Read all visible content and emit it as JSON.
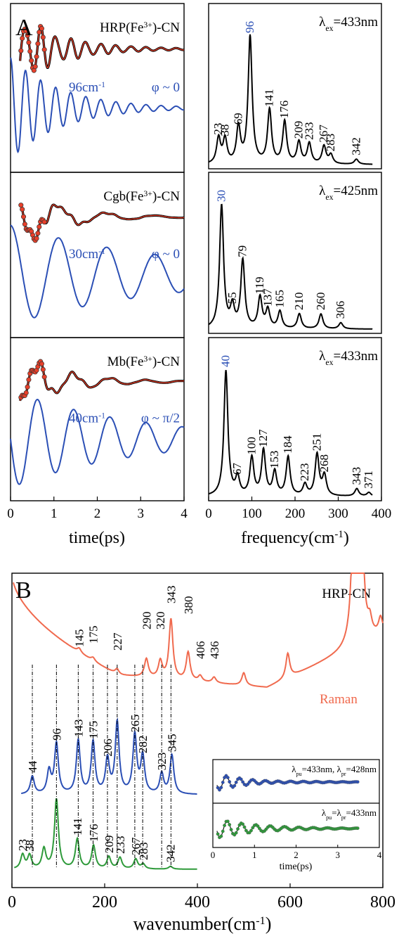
{
  "panel_labels": {
    "a": "A",
    "b": "B"
  },
  "colors": {
    "black": "#000000",
    "blue": "#2b4fb5",
    "red": "#e8402a",
    "orange": "#f06a4e",
    "green": "#2e9a3a",
    "dash": "#000000"
  },
  "chart_data": [
    {
      "type": "line",
      "panel": "A-time",
      "xlabel": "time(ps)",
      "xlim": [
        0,
        4
      ],
      "xticks": [
        "0",
        "1",
        "2",
        "3",
        "4"
      ],
      "rows": [
        {
          "sample": "HRP(Fe³⁺)-CN",
          "sample_text": "HRP(Fe",
          "sample_sup": "3+",
          "sample_tail": ")-CN",
          "freq_label": "96cm",
          "freq_sup": "-1",
          "phase_label": "φ ~ 0",
          "freq_cm": 96,
          "phase": "0"
        },
        {
          "sample": "Cgb(Fe³⁺)-CN",
          "sample_text": "Cgb(Fe",
          "sample_sup": "3+",
          "sample_tail": ")-CN",
          "freq_label": "30cm",
          "freq_sup": "-1",
          "phase_label": "φ ~ 0",
          "freq_cm": 30,
          "phase": "0"
        },
        {
          "sample": "Mb(Fe³⁺)-CN",
          "sample_text": "Mb(Fe",
          "sample_sup": "3+",
          "sample_tail": ")-CN",
          "freq_label": "40cm",
          "freq_sup": "-1",
          "phase_label": "φ ~ π/2",
          "freq_cm": 40,
          "phase": "pi/2"
        }
      ]
    },
    {
      "type": "line",
      "panel": "A-frequency",
      "xlabel": "frequency(cm",
      "xlabel_sup": "-1",
      "xlabel_tail": ")",
      "xlim": [
        0,
        400
      ],
      "xticks": [
        "0",
        "100",
        "200",
        "300",
        "400"
      ],
      "rows": [
        {
          "excitation": "λ",
          "excitation_sub": "ex",
          "excitation_value": "=433nm",
          "dominant": "96",
          "peaks": [
            {
              "x": 23,
              "h": 0.2
            },
            {
              "x": 38,
              "h": 0.19
            },
            {
              "x": 69,
              "h": 0.28
            },
            {
              "x": 96,
              "h": 1.0
            },
            {
              "x": 141,
              "h": 0.42
            },
            {
              "x": 176,
              "h": 0.33
            },
            {
              "x": 209,
              "h": 0.17
            },
            {
              "x": 233,
              "h": 0.16
            },
            {
              "x": 267,
              "h": 0.14
            },
            {
              "x": 283,
              "h": 0.07
            },
            {
              "x": 342,
              "h": 0.04
            }
          ]
        },
        {
          "excitation": "λ",
          "excitation_sub": "ex",
          "excitation_value": "=425nm",
          "dominant": "30",
          "peaks": [
            {
              "x": 30,
              "h": 1.0
            },
            {
              "x": 55,
              "h": 0.17
            },
            {
              "x": 79,
              "h": 0.55
            },
            {
              "x": 119,
              "h": 0.25
            },
            {
              "x": 137,
              "h": 0.15
            },
            {
              "x": 165,
              "h": 0.14
            },
            {
              "x": 210,
              "h": 0.12
            },
            {
              "x": 260,
              "h": 0.12
            },
            {
              "x": 306,
              "h": 0.05
            }
          ]
        },
        {
          "excitation": "λ",
          "excitation_sub": "ex",
          "excitation_value": "=433nm",
          "dominant": "40",
          "peaks": [
            {
              "x": 40,
              "h": 1.0
            },
            {
              "x": 67,
              "h": 0.14
            },
            {
              "x": 100,
              "h": 0.3
            },
            {
              "x": 127,
              "h": 0.36
            },
            {
              "x": 153,
              "h": 0.19
            },
            {
              "x": 184,
              "h": 0.31
            },
            {
              "x": 223,
              "h": 0.09
            },
            {
              "x": 251,
              "h": 0.33
            },
            {
              "x": 268,
              "h": 0.16
            },
            {
              "x": 343,
              "h": 0.06
            },
            {
              "x": 371,
              "h": 0.03
            }
          ]
        }
      ]
    },
    {
      "type": "line",
      "panel": "B",
      "title": "HRP-CN",
      "xlabel": "wavenumber(cm",
      "xlabel_sup": "-1",
      "xlabel_tail": ")",
      "xlim": [
        0,
        800
      ],
      "xticks": [
        "0",
        "200",
        "400",
        "600",
        "800"
      ],
      "series": [
        {
          "name": "Raman",
          "color": "orange",
          "labels": [
            "145",
            "175",
            "227",
            "290",
            "320",
            "343",
            "380",
            "406",
            "436"
          ],
          "label_x": [
            145,
            175,
            227,
            290,
            320,
            343,
            380,
            406,
            436
          ]
        },
        {
          "color": "blue",
          "labels": [
            "44",
            "96",
            "143",
            "175",
            "206",
            "265",
            "282",
            "323",
            "345"
          ],
          "label_x": [
            44,
            96,
            143,
            175,
            206,
            265,
            282,
            323,
            345
          ],
          "peaks": [
            {
              "x": 44,
              "h": 0.22
            },
            {
              "x": 80,
              "h": 0.28
            },
            {
              "x": 96,
              "h": 0.62
            },
            {
              "x": 143,
              "h": 0.66
            },
            {
              "x": 175,
              "h": 0.64
            },
            {
              "x": 206,
              "h": 0.42
            },
            {
              "x": 227,
              "h": 0.88
            },
            {
              "x": 265,
              "h": 0.72
            },
            {
              "x": 282,
              "h": 0.46
            },
            {
              "x": 323,
              "h": 0.25
            },
            {
              "x": 345,
              "h": 0.48
            }
          ]
        },
        {
          "color": "green",
          "labels": [
            "23",
            "38",
            "141",
            "176",
            "209",
            "233",
            "267",
            "283",
            "342"
          ],
          "label_x": [
            23,
            38,
            141,
            176,
            209,
            233,
            267,
            283,
            342
          ],
          "peaks": [
            {
              "x": 23,
              "h": 0.2
            },
            {
              "x": 38,
              "h": 0.19
            },
            {
              "x": 69,
              "h": 0.28
            },
            {
              "x": 96,
              "h": 1.0
            },
            {
              "x": 141,
              "h": 0.42
            },
            {
              "x": 176,
              "h": 0.33
            },
            {
              "x": 209,
              "h": 0.17
            },
            {
              "x": 233,
              "h": 0.16
            },
            {
              "x": 267,
              "h": 0.14
            },
            {
              "x": 283,
              "h": 0.07
            },
            {
              "x": 342,
              "h": 0.04
            }
          ]
        }
      ],
      "dash_links": [
        44,
        96,
        143,
        175,
        206,
        227,
        265,
        282,
        323,
        343
      ],
      "inset": {
        "xlabel": "time(ps)",
        "xlim": [
          0,
          4
        ],
        "xticks": [
          "0",
          "1",
          "2",
          "3",
          "4"
        ],
        "top_label_a": "λ",
        "top_sub_a": "pu",
        "top_value_a": "=433nm, ",
        "top_label_b": "λ",
        "top_sub_b": "pr",
        "top_value_b": "=428nm",
        "bottom_label_a": "λ",
        "bottom_sub_a": "pu",
        "bottom_value_a": "=",
        "bottom_label_b": "λ",
        "bottom_sub_b": "pr",
        "bottom_value_b": "=433nm"
      }
    }
  ]
}
